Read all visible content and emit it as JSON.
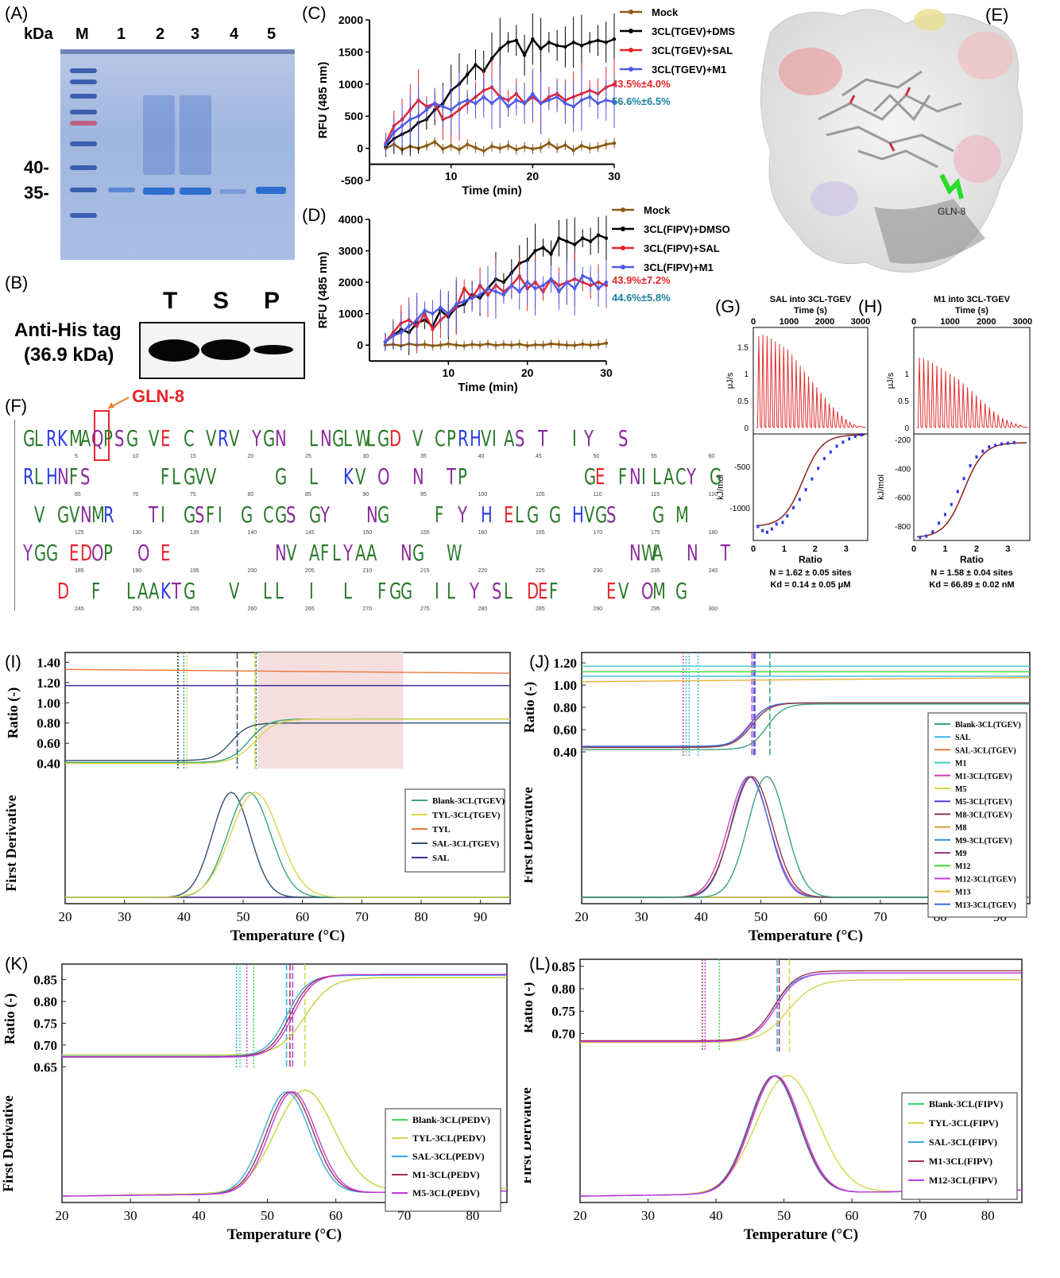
{
  "panels": {
    "A": "(A)",
    "B": "(B)",
    "C": "(C)",
    "D": "(D)",
    "E": "(E)",
    "F": "(F)",
    "G": "(G)",
    "H": "(H)",
    "I": "(I)",
    "J": "(J)",
    "K": "(K)",
    "L": "(L)"
  },
  "gel": {
    "kda_label": "kDa",
    "lanes": [
      "M",
      "1",
      "2",
      "3",
      "4",
      "5"
    ],
    "markers": [
      "40-",
      "35-"
    ],
    "colors": {
      "band": "#2f6fcf",
      "marker": "#3a5fb0",
      "pink_marker": "#c06080"
    }
  },
  "western": {
    "title_line1": "Anti-His tag",
    "title_line2": "(36.9 kDa)",
    "lanes": [
      "T",
      "S",
      "P"
    ]
  },
  "chart_data": [
    {
      "id": "C",
      "type": "line",
      "xlabel": "Time (min)",
      "ylabel": "RFU (485 nm)",
      "xlim": [
        0,
        30
      ],
      "ylim": [
        -500,
        2000
      ],
      "xticks": [
        10,
        20,
        30
      ],
      "yticks": [
        -500,
        0,
        500,
        1000,
        1500,
        2000
      ],
      "x": [
        2,
        3,
        4,
        5,
        6,
        7,
        8,
        9,
        10,
        11,
        12,
        13,
        14,
        15,
        16,
        17,
        18,
        19,
        20,
        21,
        22,
        23,
        24,
        25,
        26,
        27,
        28,
        29,
        30
      ],
      "series": [
        {
          "name": "Mock",
          "color": "#8b5a14",
          "values": [
            0,
            60,
            -20,
            30,
            0,
            40,
            100,
            -10,
            40,
            -20,
            60,
            10,
            -40,
            30,
            0,
            40,
            -20,
            20,
            -10,
            10,
            80,
            0,
            50,
            -30,
            40,
            0,
            20,
            60,
            80
          ]
        },
        {
          "name": "3CL(TGEV)+DMSO",
          "color": "#000000",
          "values": [
            30,
            150,
            220,
            280,
            400,
            450,
            600,
            700,
            900,
            1000,
            1150,
            1300,
            1200,
            1400,
            1550,
            1650,
            1680,
            1450,
            1700,
            1550,
            1650,
            1600,
            1580,
            1650,
            1600,
            1650,
            1680,
            1650,
            1700
          ]
        },
        {
          "name": "3CL(TGEV)+SAL",
          "color": "#e8232a",
          "values": [
            80,
            350,
            450,
            600,
            750,
            650,
            700,
            450,
            500,
            600,
            700,
            800,
            900,
            950,
            800,
            750,
            850,
            700,
            800,
            700,
            800,
            850,
            750,
            800,
            850,
            900,
            850,
            950,
            1000
          ]
        },
        {
          "name": "3CL(TGEV)+M1",
          "color": "#4f5ae8",
          "values": [
            60,
            250,
            350,
            450,
            500,
            600,
            700,
            650,
            600,
            700,
            750,
            700,
            800,
            700,
            800,
            650,
            750,
            700,
            850,
            700,
            750,
            800,
            700,
            650,
            750,
            800,
            700,
            750,
            720
          ]
        }
      ],
      "annotations": [
        {
          "text": "43.5%±4.0%",
          "color": "#e8232a"
        },
        {
          "text": "56.6%±6.5%",
          "color": "#1a7f9c"
        }
      ]
    },
    {
      "id": "D",
      "type": "line",
      "xlabel": "Time (min)",
      "ylabel": "RFU (485 nm)",
      "xlim": [
        0,
        30
      ],
      "ylim": [
        -500,
        4000
      ],
      "xticks": [
        10,
        20,
        30
      ],
      "yticks": [
        0,
        1000,
        2000,
        3000,
        4000
      ],
      "x": [
        2,
        3,
        4,
        5,
        6,
        7,
        8,
        9,
        10,
        11,
        12,
        13,
        14,
        15,
        16,
        17,
        18,
        19,
        20,
        21,
        22,
        23,
        24,
        25,
        26,
        27,
        28,
        29,
        30
      ],
      "series": [
        {
          "name": "Mock",
          "color": "#8b5a14",
          "values": [
            0,
            20,
            -20,
            40,
            0,
            20,
            -20,
            0,
            40,
            0,
            -20,
            20,
            0,
            40,
            -10,
            20,
            0,
            30,
            -20,
            10,
            0,
            40,
            20,
            0,
            -10,
            30,
            0,
            20,
            60
          ]
        },
        {
          "name": "3CL(FIPV)+DMSO",
          "color": "#000000",
          "values": [
            100,
            300,
            500,
            400,
            700,
            800,
            600,
            1100,
            900,
            1200,
            1300,
            1600,
            1500,
            1800,
            2100,
            2000,
            2300,
            2600,
            2700,
            3000,
            3100,
            2900,
            3400,
            3300,
            3200,
            3400,
            3300,
            3500,
            3400
          ]
        },
        {
          "name": "3CL(FIPV)+SAL",
          "color": "#e8232a",
          "values": [
            100,
            400,
            700,
            800,
            600,
            1000,
            500,
            800,
            1000,
            1200,
            1800,
            1500,
            1900,
            1600,
            1900,
            1700,
            1900,
            2200,
            1800,
            2000,
            1700,
            2100,
            1900,
            2000,
            2100,
            2000,
            1900,
            2000,
            1900
          ]
        },
        {
          "name": "3CL(FIPV)+M1",
          "color": "#4f5ae8",
          "values": [
            100,
            300,
            400,
            600,
            800,
            1100,
            1000,
            1200,
            1000,
            1300,
            1400,
            1500,
            1600,
            1800,
            1700,
            1600,
            1900,
            1700,
            2000,
            1800,
            1900,
            2100,
            1700,
            2000,
            1800,
            2200,
            2100,
            1800,
            2000
          ]
        }
      ],
      "annotations": [
        {
          "text": "43.9%±7.2%",
          "color": "#e8232a"
        },
        {
          "text": "44.6%±5.8%",
          "color": "#1a7f9c"
        }
      ]
    },
    {
      "id": "G",
      "type": "scatter",
      "title": "SAL into 3CL-TGEV",
      "top_xlabel": "Time (s)",
      "top_ylabel": "μJ/s",
      "top_xticks": [
        0,
        1000,
        2000,
        3000
      ],
      "top_yticks": [
        0,
        0.5,
        1,
        1.5
      ],
      "xlabel": "Ratio",
      "ylabel": "kJ/mol",
      "xticks": [
        0,
        1,
        2,
        3
      ],
      "yticks": [
        -1000,
        -500
      ],
      "injection_heights": [
        1.7,
        1.72,
        1.7,
        1.65,
        1.6,
        1.55,
        1.5,
        1.45,
        1.35,
        1.25,
        1.15,
        1.05,
        0.95,
        0.85,
        0.75,
        0.65,
        0.55,
        0.45,
        0.38,
        0.3,
        0.22,
        0.16,
        0.1,
        0.06,
        0.03
      ],
      "points_x": [
        0.15,
        0.3,
        0.45,
        0.6,
        0.75,
        0.95,
        1.1,
        1.3,
        1.5,
        1.7,
        1.9,
        2.1,
        2.3,
        2.5,
        2.7,
        2.9,
        3.1,
        3.3,
        3.5
      ],
      "points_y": [
        -1230,
        -1280,
        -1300,
        -1260,
        -1200,
        -1180,
        -1100,
        -1000,
        -900,
        -780,
        -650,
        -520,
        -400,
        -320,
        -250,
        -200,
        -160,
        -130,
        -110
      ],
      "notes": [
        "N = 1.62 ± 0.05 sites",
        "Kd = 0.14 ± 0.05 μM"
      ]
    },
    {
      "id": "H",
      "type": "scatter",
      "title": "M1 into 3CL-TGEV",
      "top_xlabel": "Time (s)",
      "top_ylabel": "μJ/s",
      "top_xticks": [
        0,
        1000,
        2000,
        3000
      ],
      "top_yticks": [
        0,
        0.5,
        1
      ],
      "xlabel": "Ratio",
      "ylabel": "kJ/mol",
      "xticks": [
        0,
        1,
        2,
        3
      ],
      "yticks": [
        -800,
        -600,
        -400,
        -200
      ],
      "injection_heights": [
        1.3,
        1.28,
        1.25,
        1.2,
        1.15,
        1.1,
        1.05,
        1.0,
        0.95,
        0.9,
        0.82,
        0.75,
        0.68,
        0.6,
        0.52,
        0.45,
        0.38,
        0.3,
        0.24,
        0.18,
        0.14,
        0.1,
        0.07,
        0.05
      ],
      "points_x": [
        0.2,
        0.4,
        0.6,
        0.8,
        1.0,
        1.2,
        1.4,
        1.6,
        1.8,
        2.0,
        2.2,
        2.4,
        2.6,
        2.8,
        3.0,
        3.2
      ],
      "points_y": [
        -880,
        -870,
        -840,
        -780,
        -720,
        -650,
        -560,
        -470,
        -380,
        -320,
        -280,
        -250,
        -240,
        -230,
        -225,
        -220
      ],
      "notes": [
        "N = 1.58 ± 0.04 sites",
        "Kd = 66.89 ± 0.02 nM"
      ]
    },
    {
      "id": "I",
      "type": "line",
      "xlabel": "Temperature (°C)",
      "ylabel_top": "Ratio (-)",
      "ylabel_bottom": "First Derivative",
      "xlim": [
        20,
        95
      ],
      "xticks": [
        20,
        30,
        40,
        50,
        60,
        70,
        80,
        90
      ],
      "ylim": [
        0.35,
        1.45
      ],
      "yticks": [
        0.4,
        0.6,
        0.8,
        1.0,
        1.2,
        1.4
      ],
      "series": [
        {
          "name": "Blank-3CL(TGEV)",
          "color": "#3aa37a",
          "tm": 52
        },
        {
          "name": "TYL-3CL(TGEV)",
          "color": "#d9d34a",
          "tm": 52
        },
        {
          "name": "TYL",
          "color": "#e8773a",
          "tm": null
        },
        {
          "name": "SAL-3CL(TGEV)",
          "color": "#2f4f6f",
          "tm": 49
        },
        {
          "name": "SAL",
          "color": "#3a2f9c",
          "tm": null
        }
      ]
    },
    {
      "id": "J",
      "type": "line",
      "xlabel": "Temperature (°C)",
      "ylabel_top": "Ratio (-)",
      "ylabel_bottom": "First Derivative",
      "xlim": [
        20,
        95
      ],
      "xticks": [
        20,
        30,
        40,
        50,
        60,
        70,
        80,
        90
      ],
      "ylim": [
        0.35,
        1.25
      ],
      "yticks": [
        0.4,
        0.6,
        0.8,
        1.0,
        1.2
      ],
      "series": [
        {
          "name": "Blank-3CL(TGEV)",
          "color": "#3aa37a"
        },
        {
          "name": "SAL",
          "color": "#35b9e8"
        },
        {
          "name": "SAL-3CL(TGEV)",
          "color": "#e8773a"
        },
        {
          "name": "M1",
          "color": "#3ad0c0"
        },
        {
          "name": "M1-3CL(TGEV)",
          "color": "#d83ac0"
        },
        {
          "name": "M5",
          "color": "#d9d34a"
        },
        {
          "name": "M5-3CL(TGEV)",
          "color": "#6a3ad8"
        },
        {
          "name": "M8-3CL(TGEV)",
          "color": "#8b3a3a"
        },
        {
          "name": "M8",
          "color": "#d8a03a"
        },
        {
          "name": "M9-3CL(TGEV)",
          "color": "#3a8bd8"
        },
        {
          "name": "M9",
          "color": "#9c3a8b"
        },
        {
          "name": "M12",
          "color": "#3ad83a"
        },
        {
          "name": "M12-3CL(TGEV)",
          "color": "#c03ae8"
        },
        {
          "name": "M13",
          "color": "#e8b03a"
        },
        {
          "name": "M13-3CL(TGEV)",
          "color": "#3a6ae8"
        }
      ]
    },
    {
      "id": "K",
      "type": "line",
      "xlabel": "Temperature (°C)",
      "ylabel_top": "Ratio (-)",
      "ylabel_bottom": "First Derivative",
      "xlim": [
        20,
        85
      ],
      "xticks": [
        20,
        30,
        40,
        50,
        60,
        70,
        80
      ],
      "ylim": [
        0.645,
        0.875
      ],
      "yticks": [
        0.65,
        0.7,
        0.75,
        0.8,
        0.85
      ],
      "series": [
        {
          "name": "Blank-3CL(PEDV)",
          "color": "#3ad85a"
        },
        {
          "name": "TYL-3CL(PEDV)",
          "color": "#d9d34a"
        },
        {
          "name": "SAL-3CL(PEDV)",
          "color": "#35a9e8"
        },
        {
          "name": "M1-3CL(PEDV)",
          "color": "#a0304a"
        },
        {
          "name": "M5-3CL(PEDV)",
          "color": "#c03ae8"
        }
      ]
    },
    {
      "id": "L",
      "type": "line",
      "xlabel": "Temperature (°C)",
      "ylabel_top": "Ratio (-)",
      "ylabel_bottom": "First Derivative",
      "xlim": [
        20,
        85
      ],
      "xticks": [
        20,
        30,
        40,
        50,
        60,
        70,
        80
      ],
      "ylim": [
        0.66,
        0.855
      ],
      "yticks": [
        0.7,
        0.75,
        0.8,
        0.85
      ],
      "series": [
        {
          "name": "Blank-3CL(FIPV)",
          "color": "#3ad85a"
        },
        {
          "name": "TYL-3CL(FIPV)",
          "color": "#d9d34a"
        },
        {
          "name": "SAL-3CL(FIPV)",
          "color": "#35a9e8"
        },
        {
          "name": "M1-3CL(FIPV)",
          "color": "#a0304a"
        },
        {
          "name": "M12-3CL(FIPV)",
          "color": "#c03ae8"
        }
      ]
    }
  ],
  "structure": {
    "residue_label": "GLN-8"
  },
  "seq_logo": {
    "callout": "GLN-8",
    "rows": [
      {
        "text": "GLRKMAQPSG VE C VRV YGN  LNGLWLGD V CPRHVIAS T  IY  S",
        "start": 5,
        "end": 60
      },
      {
        "text": "RLHNFS      FLGVV     G  L  KV O  N  TP          GE FNILACY G",
        "start": 65,
        "end": 120
      },
      {
        "text": " V GVNMR   TI GSFI G CGS GY   NG    F Y H ELG G HVGS   G M",
        "start": 125,
        "end": 180
      },
      {
        "text": "YGG EDOP  O E         NV AFLYAA  NG  W               NWA  N  T",
        "start": 185,
        "end": 240
      },
      {
        "text": "   D  F  LAAKTG   V  LL  I  L  FGG  IL Y SL DEF    EV OM G",
        "start": 245,
        "end": 300
      }
    ],
    "colors": {
      "hydrophobic": "#2a7a2a",
      "polar": "#8a2a9c",
      "acidic": "#e8232a",
      "basic": "#2a3ae8",
      "other": "#000000"
    }
  }
}
